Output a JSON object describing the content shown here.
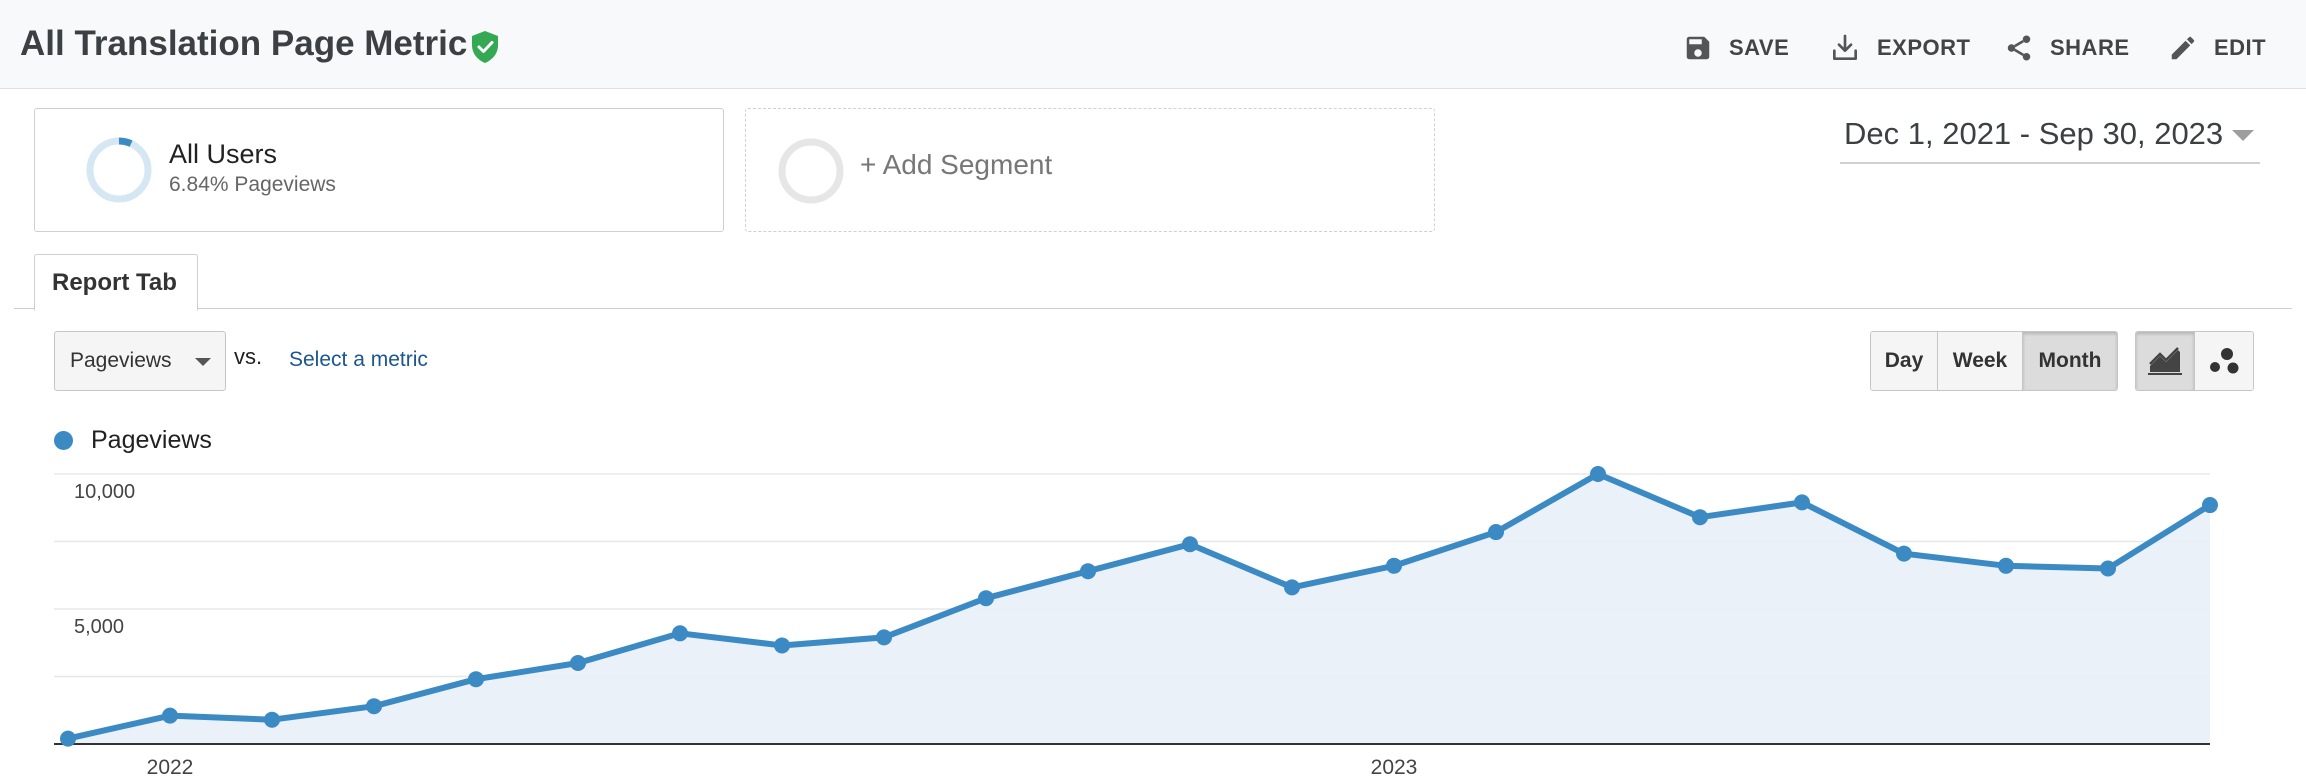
{
  "header": {
    "title": "All Translation Page Metric",
    "actions": [
      {
        "label": "SAVE",
        "icon": "save-icon"
      },
      {
        "label": "EXPORT",
        "icon": "export-icon"
      },
      {
        "label": "SHARE",
        "icon": "share-icon"
      },
      {
        "label": "EDIT",
        "icon": "edit-icon"
      }
    ]
  },
  "segments": {
    "active": {
      "name": "All Users",
      "detail": "6.84% Pageviews",
      "fraction": 0.0684
    },
    "add_label": "+ Add Segment"
  },
  "date_range": "Dec 1, 2021 - Sep 30, 2023",
  "tabs": [
    {
      "label": "Report Tab"
    }
  ],
  "controls": {
    "metric_selected": "Pageviews",
    "vs_label": "vs.",
    "compare_link": "Select a metric",
    "granularity": [
      {
        "label": "Day",
        "active": false
      },
      {
        "label": "Week",
        "active": false
      },
      {
        "label": "Month",
        "active": true
      }
    ],
    "chart_types": [
      {
        "icon": "line-chart-icon",
        "active": true
      },
      {
        "icon": "motion-chart-icon",
        "active": false
      }
    ]
  },
  "colors": {
    "accent": "#3b8ac4",
    "fill": "#e8f0f8",
    "link": "#1a5692",
    "shield": "#34a853"
  },
  "chart_data": {
    "type": "area",
    "series": [
      {
        "name": "Pageviews",
        "x": [
          "2021-12",
          "2022-01",
          "2022-02",
          "2022-03",
          "2022-04",
          "2022-05",
          "2022-06",
          "2022-07",
          "2022-08",
          "2022-09",
          "2022-10",
          "2022-11",
          "2022-12",
          "2023-01",
          "2023-02",
          "2023-03",
          "2023-04",
          "2023-05",
          "2023-06",
          "2023-07",
          "2023-08",
          "2023-09"
        ],
        "values": [
          200,
          1050,
          900,
          1400,
          2400,
          3000,
          4100,
          3650,
          3950,
          5400,
          6400,
          7400,
          5800,
          6600,
          7850,
          10000,
          8400,
          8950,
          7050,
          6600,
          6500,
          8850
        ]
      }
    ],
    "ylim": [
      0,
      10000
    ],
    "yticks": [
      {
        "value": 10000,
        "label": "10,000"
      },
      {
        "value": 5000,
        "label": "5,000"
      }
    ],
    "xticks": [
      {
        "at": "2022-01",
        "label": "2022"
      },
      {
        "at": "2023-01",
        "label": "2023"
      }
    ],
    "grid": true,
    "legend_position": "top-left"
  }
}
